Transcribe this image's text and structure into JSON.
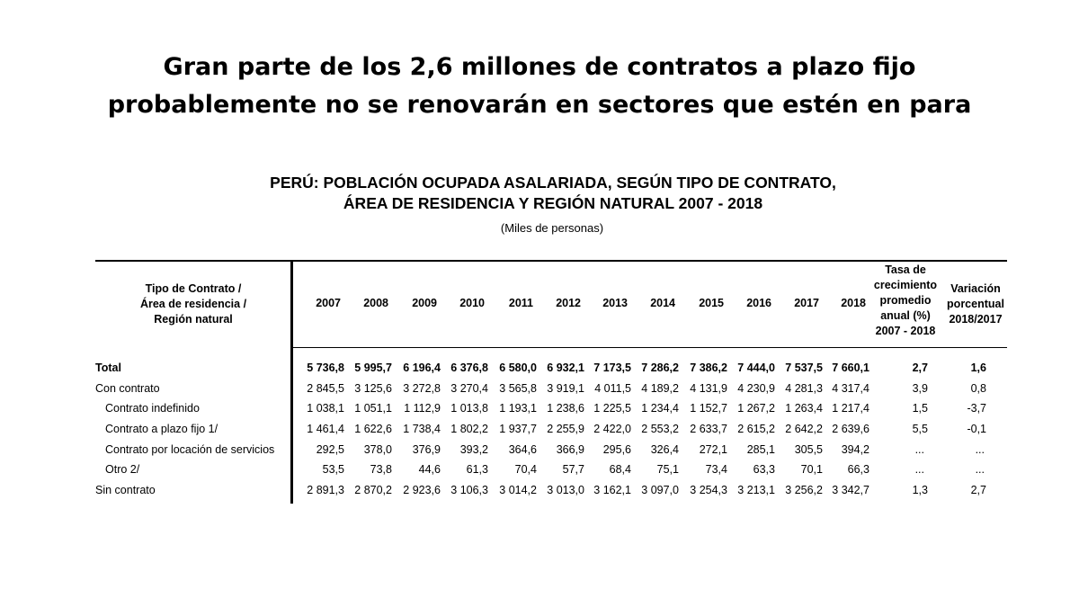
{
  "slide_title": {
    "line1": "Gran parte de los 2,6 millones de contratos a plazo fijo",
    "line2": "probablemente no se renovarán en sectores que estén en para"
  },
  "table": {
    "title_line1": "PERÚ: POBLACIÓN OCUPADA ASALARIADA, SEGÚN  TIPO DE CONTRATO,",
    "title_line2": "ÁREA DE RESIDENCIA Y REGIÓN NATURAL  2007 - 2018",
    "units": "(Miles de personas)",
    "header_label": [
      "Tipo de Contrato /",
      "Área de residencia /",
      "Región natural"
    ],
    "years": [
      "2007",
      "2008",
      "2009",
      "2010",
      "2011",
      "2012",
      "2013",
      "2014",
      "2015",
      "2016",
      "2017",
      "2018"
    ],
    "growth_header": [
      "Tasa de",
      "crecimiento",
      "promedio",
      "anual (%)",
      "2007 - 2018"
    ],
    "variation_header": [
      "Variación",
      "porcentual",
      "2018/2017"
    ],
    "rows": [
      {
        "label": "Total",
        "values": [
          "5 736,8",
          "5 995,7",
          "6 196,4",
          "6 376,8",
          "6 580,0",
          "6 932,1",
          "7 173,5",
          "7 286,2",
          "7 386,2",
          "7 444,0",
          "7 537,5",
          "7 660,1"
        ],
        "growth": "2,7",
        "variation": "1,6"
      },
      {
        "label": "Con contrato",
        "values": [
          "2 845,5",
          "3 125,6",
          "3 272,8",
          "3 270,4",
          "3 565,8",
          "3 919,1",
          "4 011,5",
          "4 189,2",
          "4 131,9",
          "4 230,9",
          "4 281,3",
          "4 317,4"
        ],
        "growth": "3,9",
        "variation": "0,8"
      },
      {
        "label": "Contrato indefinido",
        "values": [
          "1 038,1",
          "1 051,1",
          "1 112,9",
          "1 013,8",
          "1 193,1",
          "1 238,6",
          "1 225,5",
          "1 234,4",
          "1 152,7",
          "1 267,2",
          "1 263,4",
          "1 217,4"
        ],
        "growth": "1,5",
        "variation": "-3,7"
      },
      {
        "label": "Contrato a plazo fijo 1/",
        "values": [
          "1 461,4",
          "1 622,6",
          "1 738,4",
          "1 802,2",
          "1 937,7",
          "2 255,9",
          "2 422,0",
          "2 553,2",
          "2 633,7",
          "2 615,2",
          "2 642,2",
          "2 639,6"
        ],
        "growth": "5,5",
        "variation": "-0,1"
      },
      {
        "label": "Contrato por locación de servicios",
        "values": [
          "292,5",
          "378,0",
          "376,9",
          "393,2",
          "364,6",
          "366,9",
          "295,6",
          "326,4",
          "272,1",
          "285,1",
          "305,5",
          "394,2"
        ],
        "growth": "...",
        "variation": "..."
      },
      {
        "label": "Otro 2/",
        "values": [
          "53,5",
          "73,8",
          "44,6",
          "61,3",
          "70,4",
          "57,7",
          "68,4",
          "75,1",
          "73,4",
          "63,3",
          "70,1",
          "66,3"
        ],
        "growth": "...",
        "variation": "..."
      },
      {
        "label": "Sin contrato",
        "values": [
          "2 891,3",
          "2 870,2",
          "2 923,6",
          "3 106,3",
          "3 014,2",
          "3 013,0",
          "3 162,1",
          "3 097,0",
          "3 254,3",
          "3 213,1",
          "3 256,2",
          "3 342,7"
        ],
        "growth": "1,3",
        "variation": "2,7"
      }
    ]
  }
}
